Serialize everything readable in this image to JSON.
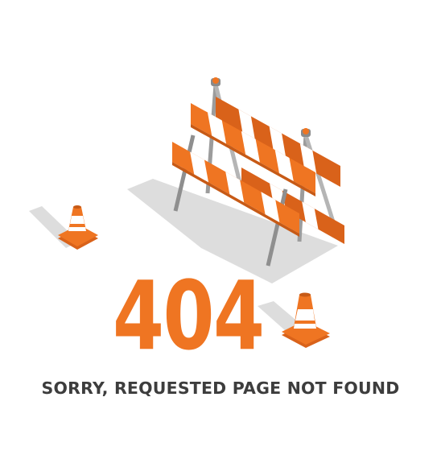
{
  "error": {
    "code": "404",
    "message": "SORRY, REQUESTED PAGE NOT FOUND"
  },
  "colors": {
    "accent": "#ef7522",
    "text": "#3d3d3d",
    "shadow": "#dcdcdc",
    "stripe": "#ffffff",
    "pole": "#9c9c9c"
  },
  "icons": [
    "road-barricade-icon",
    "traffic-cone-icon",
    "traffic-cone-icon"
  ]
}
